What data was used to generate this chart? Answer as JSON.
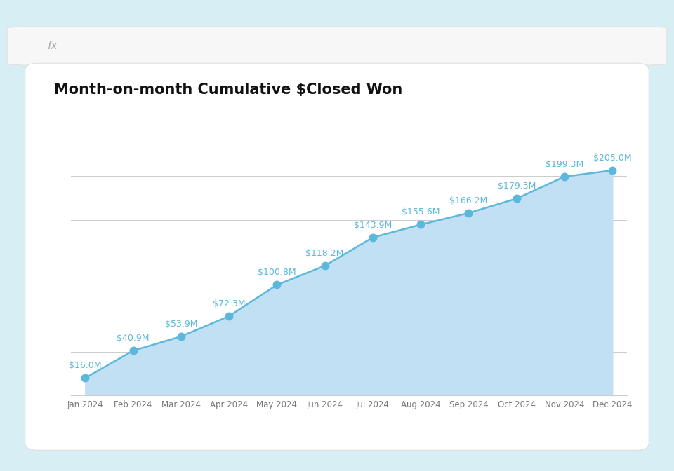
{
  "title": "Month-on-month Cumulative $Closed Won",
  "months": [
    "Jan 2024",
    "Feb 2024",
    "Mar 2024",
    "Apr 2024",
    "May 2024",
    "Jun 2024",
    "Jul 2024",
    "Aug 2024",
    "Sep 2024",
    "Oct 2024",
    "Nov 2024",
    "Dec 2024"
  ],
  "values": [
    16.0,
    40.9,
    53.9,
    72.3,
    100.8,
    118.2,
    143.9,
    155.6,
    166.2,
    179.3,
    199.3,
    205.0
  ],
  "labels": [
    "$16.0M",
    "$40.9M",
    "$53.9M",
    "$72.3M",
    "$100.8M",
    "$118.2M",
    "$143.9M",
    "$155.6M",
    "$166.2M",
    "$179.3M",
    "$199.3M",
    "$205.0M"
  ],
  "line_color": "#5BB8DC",
  "fill_color": "#C2E0F4",
  "marker_color": "#5BB8DC",
  "marker_face": "#ffffff",
  "label_color": "#5BB8DC",
  "title_color": "#111111",
  "background_outer": "#D8EEF5",
  "background_card": "#ffffff",
  "background_plot": "#ffffff",
  "grid_color": "#CCCCCC",
  "tick_color": "#777777",
  "fx_bar_color": "#f7f7f7",
  "fx_bar_border": "#e0e0e0",
  "ylim": [
    0,
    240
  ],
  "title_fontsize": 15,
  "label_fontsize": 9,
  "tick_fontsize": 8.5
}
